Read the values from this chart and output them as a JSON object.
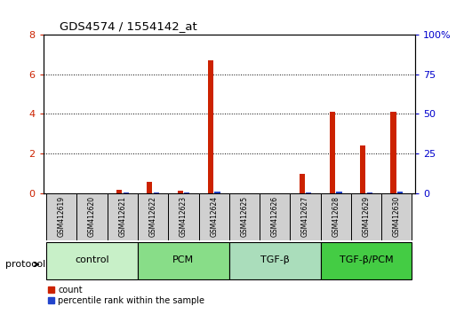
{
  "title": "GDS4574 / 1554142_at",
  "samples": [
    "GSM412619",
    "GSM412620",
    "GSM412621",
    "GSM412622",
    "GSM412623",
    "GSM412624",
    "GSM412625",
    "GSM412626",
    "GSM412627",
    "GSM412628",
    "GSM412629",
    "GSM412630"
  ],
  "count_values": [
    0.0,
    0.0,
    0.15,
    0.55,
    0.1,
    6.7,
    0.0,
    0.0,
    0.95,
    4.1,
    2.4,
    4.1
  ],
  "percentile_values": [
    0.0,
    0.0,
    0.12,
    0.12,
    0.12,
    1.0,
    0.0,
    0.0,
    0.12,
    0.7,
    0.12,
    0.7
  ],
  "groups": [
    {
      "label": "control",
      "start": 0,
      "end": 2,
      "color": "#c8f0c8"
    },
    {
      "label": "PCM",
      "start": 3,
      "end": 5,
      "color": "#88dd88"
    },
    {
      "label": "TGF-β",
      "start": 6,
      "end": 8,
      "color": "#aaddbb"
    },
    {
      "label": "TGF-β/PCM",
      "start": 9,
      "end": 11,
      "color": "#44cc44"
    }
  ],
  "ylim_left": [
    0,
    8
  ],
  "ylim_right": [
    0,
    100
  ],
  "yticks_left": [
    0,
    2,
    4,
    6,
    8
  ],
  "ytick_labels_left": [
    "0",
    "2",
    "4",
    "6",
    "8"
  ],
  "yticks_right": [
    0,
    25,
    50,
    75,
    100
  ],
  "ytick_labels_right": [
    "0",
    "25",
    "50",
    "75",
    "100%"
  ],
  "bar_width": 0.18,
  "bar_gap": 0.04,
  "count_color": "#cc2200",
  "percentile_color": "#2244cc",
  "bg_color": "#ffffff",
  "sample_box_color": "#d0d0d0",
  "protocol_label": "protocol"
}
